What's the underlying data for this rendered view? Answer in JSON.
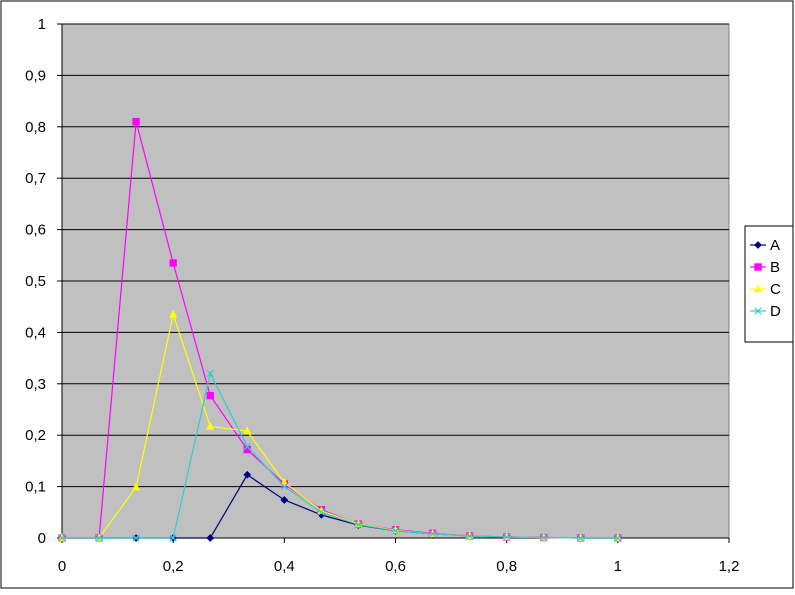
{
  "chart_data": {
    "type": "line",
    "title": "",
    "xlabel": "",
    "ylabel": "",
    "xlim": [
      0,
      1.2
    ],
    "ylim": [
      0,
      1
    ],
    "x_ticks": [
      "0",
      "0,2",
      "0,4",
      "0,6",
      "0,8",
      "1",
      "1,2"
    ],
    "y_ticks": [
      "0",
      "0,1",
      "0,2",
      "0,3",
      "0,4",
      "0,5",
      "0,6",
      "0,7",
      "0,8",
      "0,9",
      "1"
    ],
    "grid": "horizontal",
    "legend_position": "right",
    "plot_background": "#c0c0c0",
    "series": [
      {
        "name": "A",
        "color": "#000080",
        "marker": "diamond",
        "x": [
          0,
          0.0667,
          0.1333,
          0.2,
          0.2667,
          0.3333,
          0.4,
          0.4667,
          0.5333,
          0.6,
          0.6667,
          0.7333,
          0.8,
          0.8667,
          0.9333,
          1.0
        ],
        "values": [
          0,
          0,
          0,
          0,
          0,
          0.123,
          0.074,
          0.045,
          0.025,
          0.014,
          0.008,
          0.004,
          0.002,
          0.001,
          0,
          0
        ]
      },
      {
        "name": "B",
        "color": "#ff00ff",
        "marker": "square",
        "x": [
          0,
          0.0667,
          0.1333,
          0.2,
          0.2667,
          0.3333,
          0.4,
          0.4667,
          0.5333,
          0.6,
          0.6667,
          0.7333,
          0.8,
          0.8667,
          0.9333,
          1.0
        ],
        "values": [
          0,
          0,
          0.81,
          0.535,
          0.277,
          0.172,
          0.105,
          0.055,
          0.027,
          0.016,
          0.009,
          0.004,
          0.002,
          0.001,
          0,
          0
        ]
      },
      {
        "name": "C",
        "color": "#ffff00",
        "marker": "triangle",
        "x": [
          0,
          0.0667,
          0.1333,
          0.2,
          0.2667,
          0.3333,
          0.4,
          0.4667,
          0.5333,
          0.6,
          0.6667,
          0.7333,
          0.8,
          0.8667,
          0.9333,
          1.0
        ],
        "values": [
          0,
          0,
          0.099,
          0.435,
          0.217,
          0.208,
          0.108,
          0.053,
          0.027,
          0.015,
          0.008,
          0.004,
          0.002,
          0.001,
          0,
          0
        ]
      },
      {
        "name": "D",
        "color": "#33cccc",
        "marker": "x",
        "x": [
          0,
          0.0667,
          0.1333,
          0.2,
          0.2667,
          0.3333,
          0.4,
          0.4667,
          0.5333,
          0.6,
          0.6667,
          0.7333,
          0.8,
          0.8667,
          0.9333,
          1.0
        ],
        "values": [
          0,
          0,
          0,
          0,
          0.32,
          0.178,
          0.1,
          0.05,
          0.026,
          0.014,
          0.008,
          0.004,
          0.002,
          0.001,
          0,
          0
        ]
      }
    ]
  }
}
